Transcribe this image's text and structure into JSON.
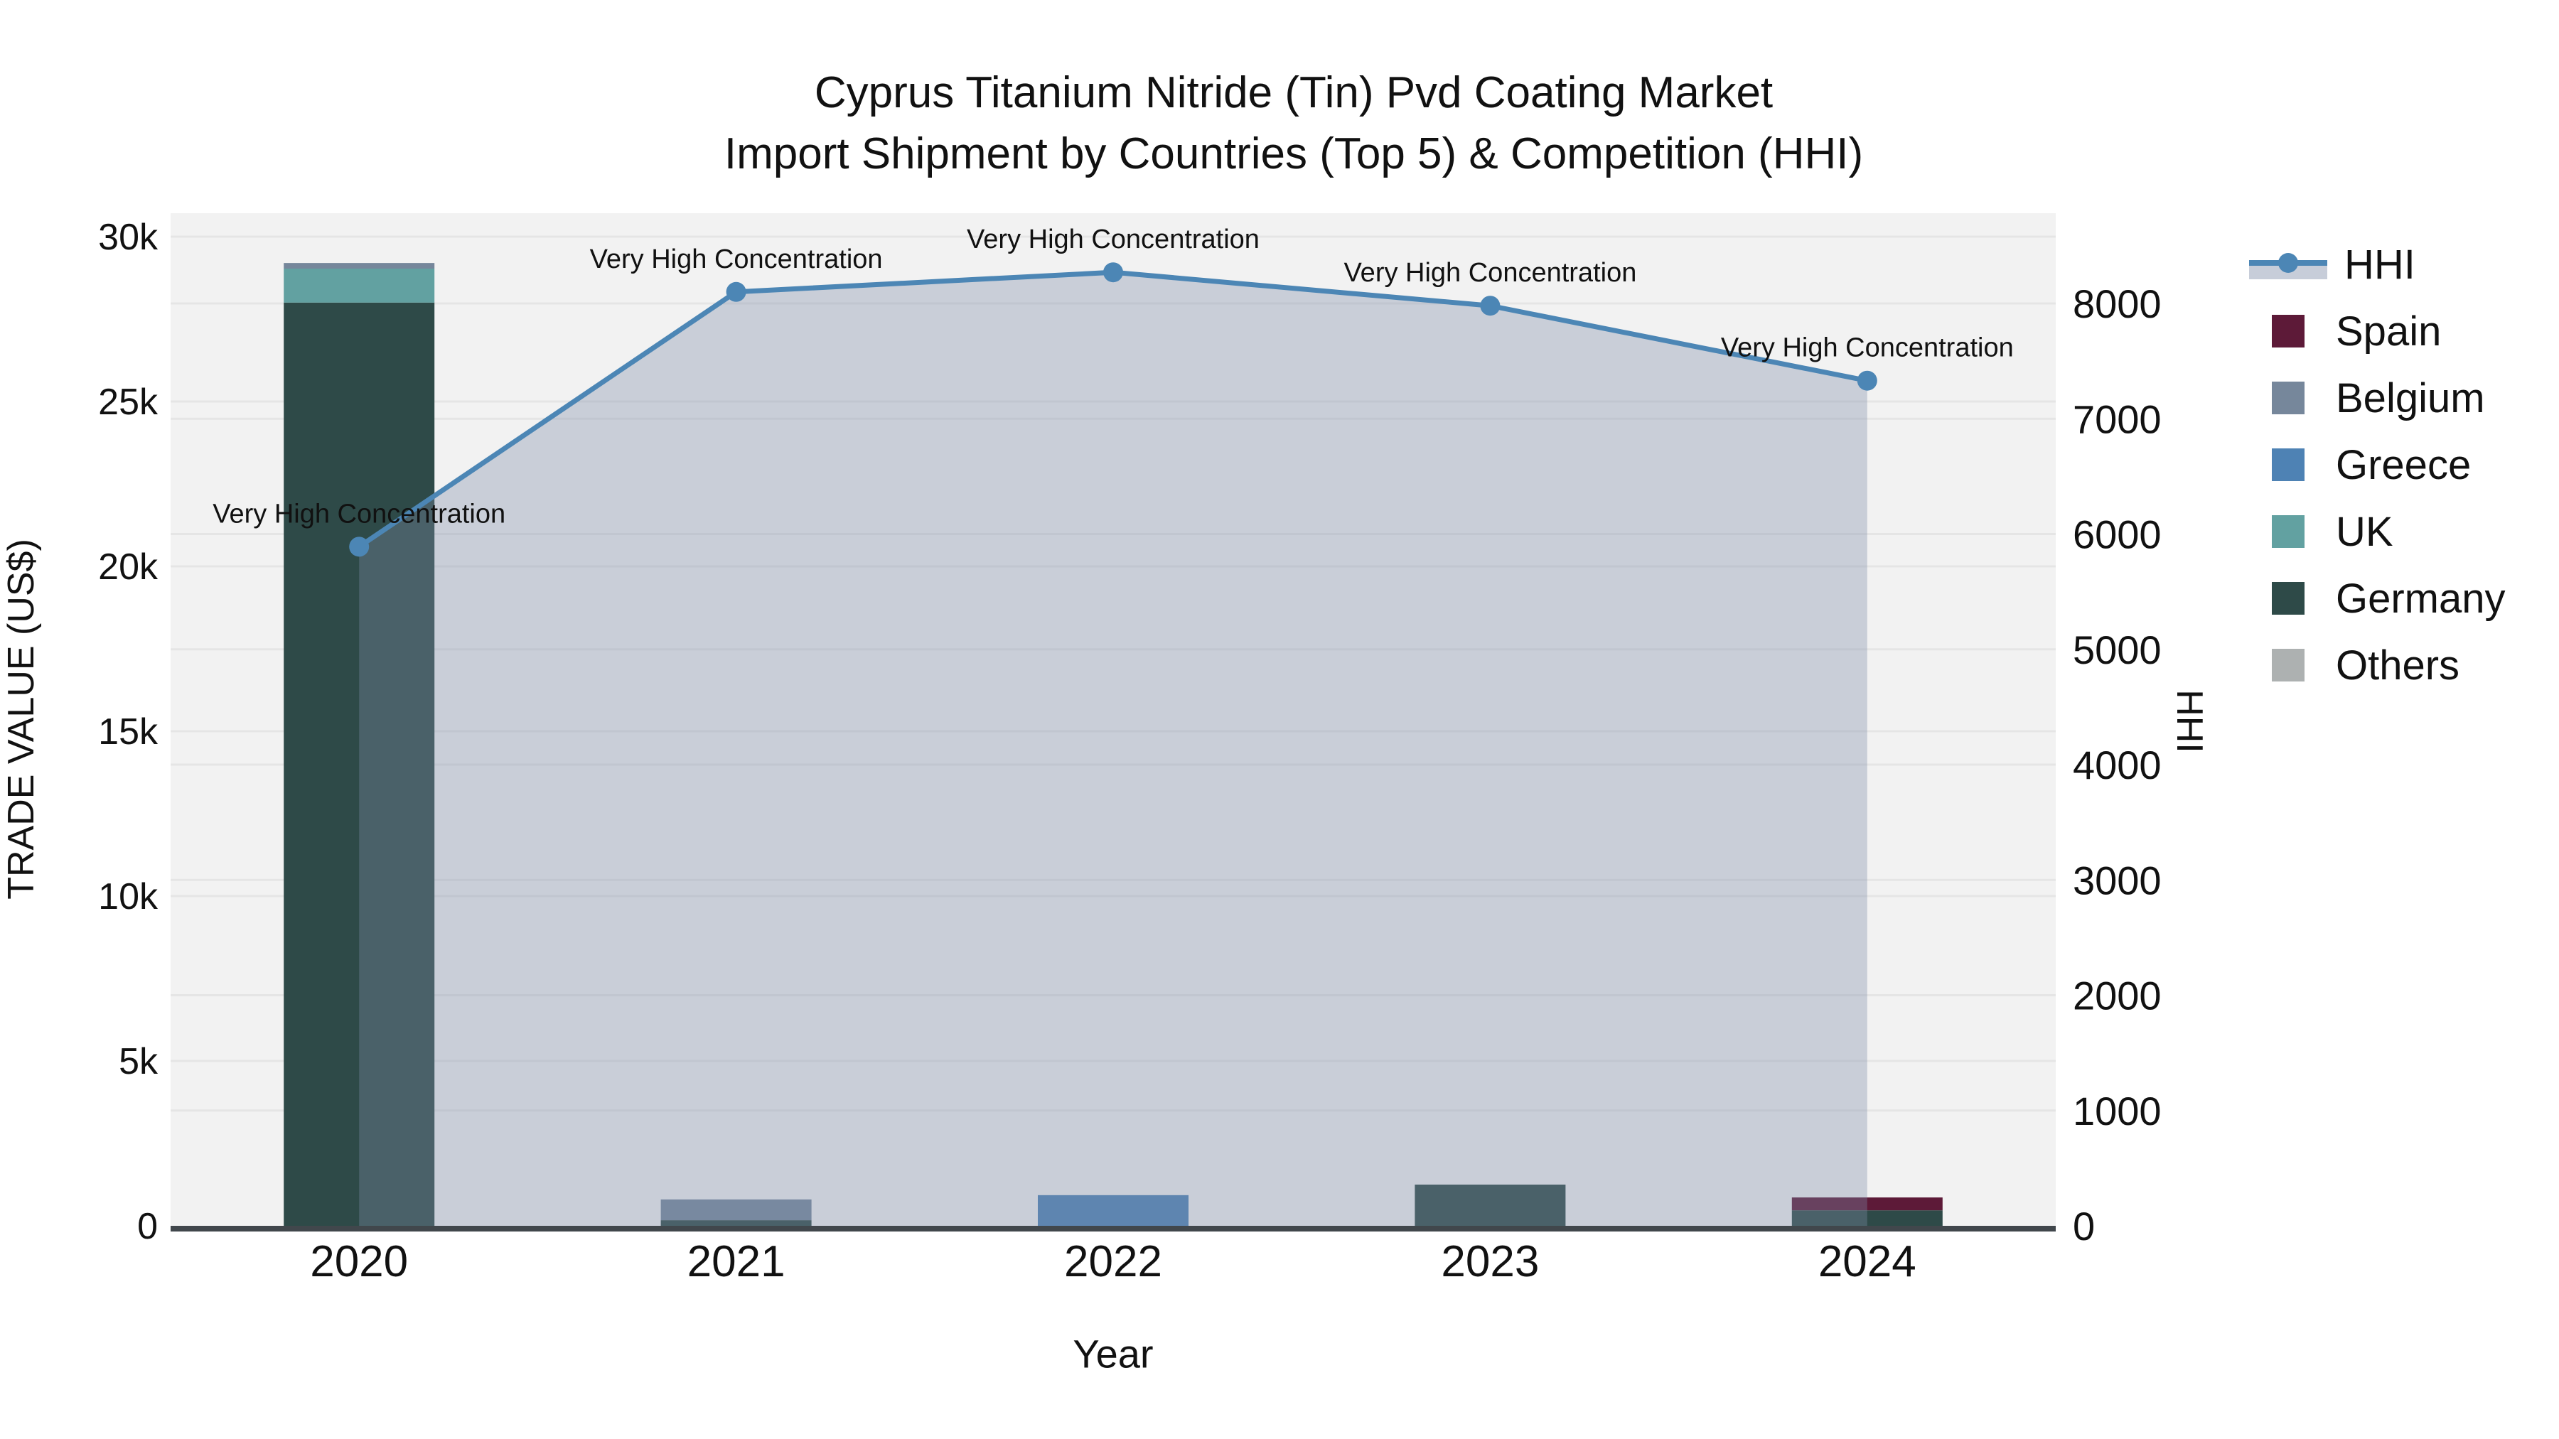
{
  "title": {
    "line1": "Cyprus Titanium Nitride (Tin) Pvd Coating Market",
    "line2": "Import Shipment by Countries (Top 5) & Competition (HHI)"
  },
  "chart_data": {
    "type": "combo_stacked_bar_line",
    "categories": [
      "2020",
      "2021",
      "2022",
      "2023",
      "2024"
    ],
    "series": [
      {
        "name": "Spain",
        "color": "#5D1A38",
        "values": [
          0,
          0,
          0,
          0,
          390
        ]
      },
      {
        "name": "Belgium",
        "color": "#76879B",
        "values": [
          170,
          630,
          0,
          0,
          0
        ]
      },
      {
        "name": "Greece",
        "color": "#4E82B4",
        "values": [
          0,
          0,
          930,
          0,
          0
        ]
      },
      {
        "name": "UK",
        "color": "#62A1A1",
        "values": [
          1030,
          0,
          0,
          0,
          0
        ]
      },
      {
        "name": "Germany",
        "color": "#2E4A48",
        "values": [
          28000,
          170,
          0,
          1250,
          470
        ]
      },
      {
        "name": "Others",
        "color": "#ADB1B1",
        "values": [
          0,
          0,
          0,
          0,
          0
        ]
      }
    ],
    "stack_order_bottom_to_top": [
      "Others",
      "Germany",
      "UK",
      "Greece",
      "Belgium",
      "Spain"
    ],
    "line_series": {
      "name": "HHI",
      "color": "#4C86B5",
      "fill_color": "rgba(125,140,170,0.35)",
      "values": [
        5890,
        8100,
        8270,
        7980,
        7330
      ]
    },
    "annotations": [
      "Very High Concentration",
      "Very High Concentration",
      "Very High Concentration",
      "Very High Concentration",
      "Very High Concentration"
    ],
    "x_axis": {
      "title": "Year"
    },
    "left_axis": {
      "title": "TRADE VALUE (US$)",
      "ticks": [
        0,
        5000,
        10000,
        15000,
        20000,
        25000,
        30000
      ],
      "labels": [
        "0",
        "5k",
        "10k",
        "15k",
        "20k",
        "25k",
        "30k"
      ],
      "range": [
        0,
        30700
      ]
    },
    "right_axis": {
      "title": "HHI",
      "ticks": [
        0,
        1000,
        2000,
        3000,
        4000,
        5000,
        6000,
        7000,
        8000
      ],
      "labels": [
        "0",
        "1000",
        "2000",
        "3000",
        "4000",
        "5000",
        "6000",
        "7000",
        "8000"
      ],
      "range": [
        0,
        8800
      ]
    },
    "plot_bg": "#F2F2F2",
    "grid_color": "#E5E5E5",
    "axis_line_color": "#41474C"
  },
  "legend": {
    "items": [
      {
        "label": "HHI",
        "type": "line",
        "color": "#4C86B5",
        "band_color": "#C7CDD9"
      },
      {
        "label": "Spain",
        "type": "swatch",
        "color": "#5D1A38"
      },
      {
        "label": "Belgium",
        "type": "swatch",
        "color": "#76879B"
      },
      {
        "label": "Greece",
        "type": "swatch",
        "color": "#4E82B4"
      },
      {
        "label": "UK",
        "type": "swatch",
        "color": "#62A1A1"
      },
      {
        "label": "Germany",
        "type": "swatch",
        "color": "#2E4A48"
      },
      {
        "label": "Others",
        "type": "swatch",
        "color": "#ADB1B1"
      }
    ]
  }
}
